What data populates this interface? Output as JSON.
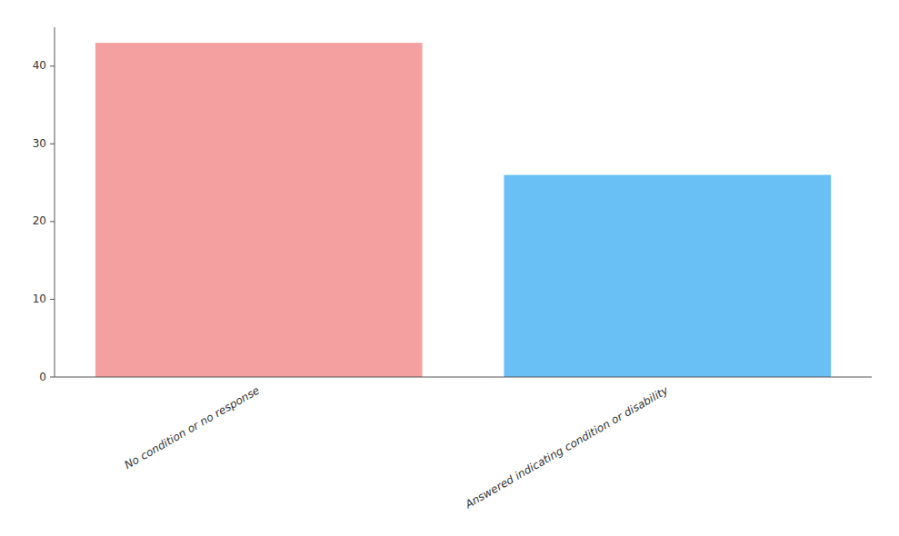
{
  "chart_data": {
    "type": "bar",
    "categories": [
      "No condition or no response",
      "Answered indicating condition or disability"
    ],
    "values": [
      43,
      26
    ],
    "colors": [
      "#f4a0a0",
      "#69c0f5"
    ],
    "ylim": [
      0,
      45
    ],
    "yticks": [
      0,
      10,
      20,
      30,
      40
    ]
  }
}
